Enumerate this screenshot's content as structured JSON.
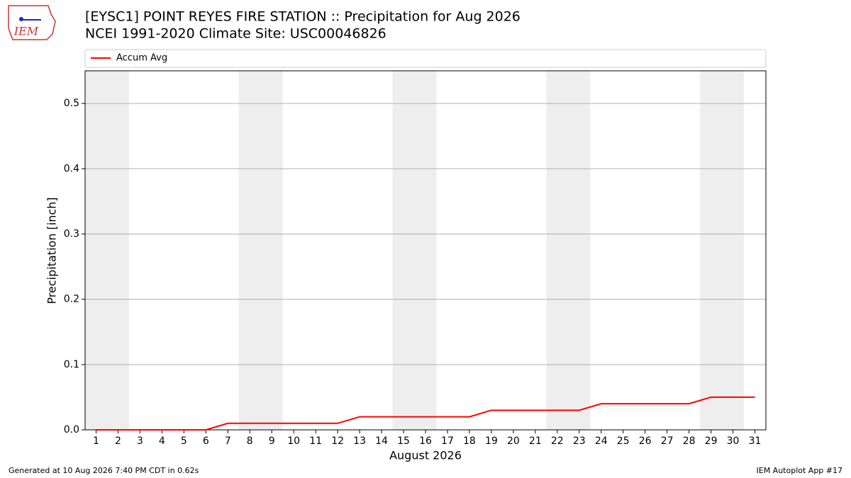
{
  "logo_text": "IEM",
  "footer": {
    "left": "Generated at 10 Aug 2026 7:40 PM CDT in 0.62s",
    "right": "IEM Autoplot App #17"
  },
  "chart_data": {
    "type": "line",
    "title": "[EYSC1] POINT REYES FIRE STATION :: Precipitation for Aug 2026",
    "subtitle": "NCEI 1991-2020 Climate Site: USC00046826",
    "xlabel": "August 2026",
    "ylabel": "Precipitation [inch]",
    "x": [
      1,
      2,
      3,
      4,
      5,
      6,
      7,
      8,
      9,
      10,
      11,
      12,
      13,
      14,
      15,
      16,
      17,
      18,
      19,
      20,
      21,
      22,
      23,
      24,
      25,
      26,
      27,
      28,
      29,
      30,
      31
    ],
    "series": [
      {
        "name": "Accum Avg",
        "color": "#ff0000",
        "values": [
          0,
          0,
          0,
          0,
          0,
          0,
          0.01,
          0.01,
          0.01,
          0.01,
          0.01,
          0.01,
          0.02,
          0.02,
          0.02,
          0.02,
          0.02,
          0.02,
          0.03,
          0.03,
          0.03,
          0.03,
          0.03,
          0.04,
          0.04,
          0.04,
          0.04,
          0.04,
          0.05,
          0.05,
          0.05
        ]
      }
    ],
    "xlim": [
      0.5,
      31.5
    ],
    "xticks": [
      1,
      2,
      3,
      4,
      5,
      6,
      7,
      8,
      9,
      10,
      11,
      12,
      13,
      14,
      15,
      16,
      17,
      18,
      19,
      20,
      21,
      22,
      23,
      24,
      25,
      26,
      27,
      28,
      29,
      30,
      31
    ],
    "ylim": [
      0,
      0.55
    ],
    "yticks": [
      {
        "value": 0,
        "label": "0.0"
      },
      0.1,
      0.2,
      0.3,
      0.4,
      0.5
    ],
    "grid": true,
    "shaded_spans": [
      [
        0.5,
        2.5
      ],
      [
        7.5,
        9.5
      ],
      [
        14.5,
        16.5
      ],
      [
        21.5,
        23.5
      ],
      [
        28.5,
        30.5
      ]
    ],
    "shade_color": "#eeeeee",
    "legend": "top"
  }
}
